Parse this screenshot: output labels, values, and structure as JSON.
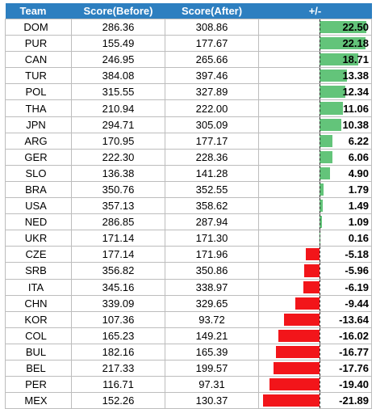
{
  "headers": {
    "team": "Team",
    "before": "Score(Before)",
    "after": "Score(After)",
    "delta": "+/-"
  },
  "colors": {
    "header_bg": "#2d7fc0",
    "positive_bar": "#63c47a",
    "negative_bar": "#f2151a"
  },
  "rows": [
    {
      "team": "DOM",
      "before": "286.36",
      "after": "308.86",
      "delta": "22.50",
      "delta_value": 22.5
    },
    {
      "team": "PUR",
      "before": "155.49",
      "after": "177.67",
      "delta": "22.18",
      "delta_value": 22.18
    },
    {
      "team": "CAN",
      "before": "246.95",
      "after": "265.66",
      "delta": "18.71",
      "delta_value": 18.71
    },
    {
      "team": "TUR",
      "before": "384.08",
      "after": "397.46",
      "delta": "13.38",
      "delta_value": 13.38
    },
    {
      "team": "POL",
      "before": "315.55",
      "after": "327.89",
      "delta": "12.34",
      "delta_value": 12.34
    },
    {
      "team": "THA",
      "before": "210.94",
      "after": "222.00",
      "delta": "11.06",
      "delta_value": 11.06
    },
    {
      "team": "JPN",
      "before": "294.71",
      "after": "305.09",
      "delta": "10.38",
      "delta_value": 10.38
    },
    {
      "team": "ARG",
      "before": "170.95",
      "after": "177.17",
      "delta": "6.22",
      "delta_value": 6.22
    },
    {
      "team": "GER",
      "before": "222.30",
      "after": "228.36",
      "delta": "6.06",
      "delta_value": 6.06
    },
    {
      "team": "SLO",
      "before": "136.38",
      "after": "141.28",
      "delta": "4.90",
      "delta_value": 4.9
    },
    {
      "team": "BRA",
      "before": "350.76",
      "after": "352.55",
      "delta": "1.79",
      "delta_value": 1.79
    },
    {
      "team": "USA",
      "before": "357.13",
      "after": "358.62",
      "delta": "1.49",
      "delta_value": 1.49
    },
    {
      "team": "NED",
      "before": "286.85",
      "after": "287.94",
      "delta": "1.09",
      "delta_value": 1.09
    },
    {
      "team": "UKR",
      "before": "171.14",
      "after": "171.30",
      "delta": "0.16",
      "delta_value": 0.16
    },
    {
      "team": "CZE",
      "before": "177.14",
      "after": "171.96",
      "delta": "-5.18",
      "delta_value": -5.18
    },
    {
      "team": "SRB",
      "before": "356.82",
      "after": "350.86",
      "delta": "-5.96",
      "delta_value": -5.96
    },
    {
      "team": "ITA",
      "before": "345.16",
      "after": "338.97",
      "delta": "-6.19",
      "delta_value": -6.19
    },
    {
      "team": "CHN",
      "before": "339.09",
      "after": "329.65",
      "delta": "-9.44",
      "delta_value": -9.44
    },
    {
      "team": "KOR",
      "before": "107.36",
      "after": "93.72",
      "delta": "-13.64",
      "delta_value": -13.64
    },
    {
      "team": "COL",
      "before": "165.23",
      "after": "149.21",
      "delta": "-16.02",
      "delta_value": -16.02
    },
    {
      "team": "BUL",
      "before": "182.16",
      "after": "165.39",
      "delta": "-16.77",
      "delta_value": -16.77
    },
    {
      "team": "BEL",
      "before": "217.33",
      "after": "199.57",
      "delta": "-17.76",
      "delta_value": -17.76
    },
    {
      "team": "PER",
      "before": "116.71",
      "after": "97.31",
      "delta": "-19.40",
      "delta_value": -19.4
    },
    {
      "team": "MEX",
      "before": "152.26",
      "after": "130.37",
      "delta": "-21.89",
      "delta_value": -21.89
    }
  ]
}
